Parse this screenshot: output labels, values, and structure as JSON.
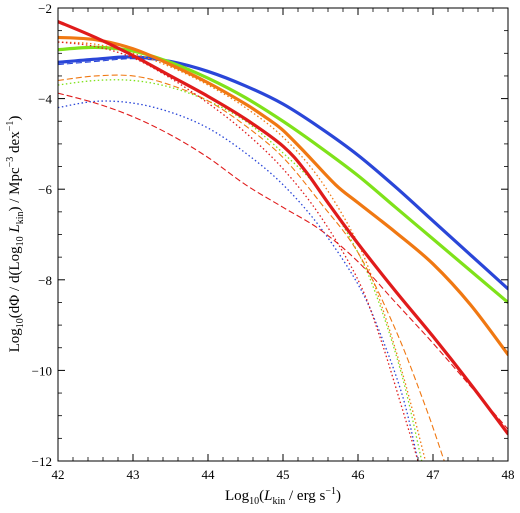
{
  "chart_data": {
    "type": "line",
    "xlabel": "Log10(Lkin / erg s−1)",
    "ylabel": "Log10(dΦ / d(Log10 Lkin) / Mpc−3 dex−1)",
    "xlim": [
      42,
      48
    ],
    "ylim": [
      -12,
      -2
    ],
    "x_ticks": [
      42,
      43,
      44,
      45,
      46,
      47,
      48
    ],
    "y_ticks": [
      -12,
      -10,
      -8,
      -6,
      -4,
      -2
    ],
    "x_ticklabels": [
      "42",
      "43",
      "44",
      "45",
      "46",
      "47",
      "48"
    ],
    "y_ticklabels": [
      "−12",
      "−10",
      "−8",
      "−6",
      "−4",
      "−2"
    ],
    "grid": false,
    "series": [
      {
        "color": "#2a46d8",
        "style": "solid",
        "points": [
          [
            42,
            -3.2
          ],
          [
            42.5,
            -3.13
          ],
          [
            43,
            -3.08
          ],
          [
            43.5,
            -3.18
          ],
          [
            44,
            -3.4
          ],
          [
            44.5,
            -3.72
          ],
          [
            45,
            -4.12
          ],
          [
            45.5,
            -4.65
          ],
          [
            46,
            -5.25
          ],
          [
            46.5,
            -5.95
          ],
          [
            47,
            -6.7
          ],
          [
            47.5,
            -7.45
          ],
          [
            48,
            -8.2
          ]
        ]
      },
      {
        "color": "#2a46d8",
        "style": "dashed",
        "points": [
          [
            42,
            -3.25
          ],
          [
            42.5,
            -3.18
          ],
          [
            43,
            -3.12
          ],
          [
            43.5,
            -3.2
          ],
          [
            44,
            -3.41
          ],
          [
            44.5,
            -3.73
          ],
          [
            45,
            -4.13
          ],
          [
            45.5,
            -4.66
          ],
          [
            46,
            -5.26
          ]
        ]
      },
      {
        "color": "#2a46d8",
        "style": "dotted",
        "points": [
          [
            42,
            -4.2
          ],
          [
            42.5,
            -4.06
          ],
          [
            43,
            -4.1
          ],
          [
            43.5,
            -4.3
          ],
          [
            44,
            -4.65
          ],
          [
            44.5,
            -5.2
          ],
          [
            45,
            -5.9
          ],
          [
            45.5,
            -6.85
          ],
          [
            46,
            -8.1
          ],
          [
            46.3,
            -9.2
          ],
          [
            46.6,
            -10.6
          ],
          [
            46.8,
            -12
          ]
        ]
      },
      {
        "color": "#7fe21a",
        "style": "solid",
        "points": [
          [
            42,
            -2.92
          ],
          [
            42.5,
            -2.87
          ],
          [
            43,
            -2.95
          ],
          [
            43.5,
            -3.2
          ],
          [
            44,
            -3.55
          ],
          [
            44.5,
            -3.98
          ],
          [
            45,
            -4.5
          ],
          [
            45.5,
            -5.08
          ],
          [
            46,
            -5.7
          ],
          [
            46.5,
            -6.4
          ],
          [
            47,
            -7.1
          ],
          [
            47.5,
            -7.8
          ],
          [
            48,
            -8.5
          ]
        ]
      },
      {
        "color": "#7fe21a",
        "style": "dotted",
        "points": [
          [
            42,
            -3.7
          ],
          [
            42.5,
            -3.6
          ],
          [
            43,
            -3.6
          ],
          [
            43.5,
            -3.75
          ],
          [
            44,
            -4.05
          ],
          [
            44.5,
            -4.5
          ],
          [
            45,
            -5.2
          ],
          [
            45.5,
            -6.05
          ],
          [
            46,
            -7.4
          ],
          [
            46.3,
            -8.6
          ],
          [
            46.6,
            -10.2
          ],
          [
            46.85,
            -12
          ]
        ]
      },
      {
        "color": "#f07812",
        "style": "solid",
        "points": [
          [
            42,
            -2.65
          ],
          [
            42.5,
            -2.7
          ],
          [
            43,
            -2.9
          ],
          [
            43.5,
            -3.25
          ],
          [
            44,
            -3.65
          ],
          [
            44.5,
            -4.12
          ],
          [
            44.8,
            -4.45
          ],
          [
            45,
            -4.7
          ],
          [
            45.3,
            -5.2
          ],
          [
            45.7,
            -5.9
          ],
          [
            46,
            -6.3
          ],
          [
            46.5,
            -6.95
          ],
          [
            47,
            -7.65
          ],
          [
            47.5,
            -8.55
          ],
          [
            48,
            -9.65
          ]
        ]
      },
      {
        "color": "#f07812",
        "style": "dashed",
        "points": [
          [
            42,
            -3.6
          ],
          [
            42.5,
            -3.5
          ],
          [
            43,
            -3.5
          ],
          [
            43.5,
            -3.7
          ],
          [
            44,
            -4.05
          ],
          [
            44.5,
            -4.6
          ],
          [
            45,
            -5.3
          ],
          [
            45.5,
            -6.3
          ],
          [
            46,
            -7.4
          ],
          [
            46.5,
            -9.1
          ],
          [
            46.9,
            -10.8
          ],
          [
            47.15,
            -12
          ]
        ]
      },
      {
        "color": "#f07812",
        "style": "dotted",
        "points": [
          [
            42,
            -2.75
          ],
          [
            42.5,
            -2.8
          ],
          [
            43,
            -3.0
          ],
          [
            43.5,
            -3.3
          ],
          [
            44,
            -3.7
          ],
          [
            44.5,
            -4.2
          ],
          [
            45,
            -4.85
          ],
          [
            45.5,
            -5.8
          ],
          [
            46,
            -7.2
          ],
          [
            46.3,
            -8.5
          ],
          [
            46.6,
            -10.1
          ],
          [
            46.9,
            -12
          ]
        ]
      },
      {
        "color": "#e01b1b",
        "style": "solid",
        "points": [
          [
            42,
            -2.3
          ],
          [
            42.5,
            -2.65
          ],
          [
            43,
            -3.05
          ],
          [
            43.5,
            -3.5
          ],
          [
            44,
            -3.95
          ],
          [
            44.5,
            -4.45
          ],
          [
            45,
            -5.05
          ],
          [
            45.3,
            -5.6
          ],
          [
            45.6,
            -6.3
          ],
          [
            46,
            -7.2
          ],
          [
            46.5,
            -8.25
          ],
          [
            47,
            -9.25
          ],
          [
            47.5,
            -10.3
          ],
          [
            48,
            -11.4
          ]
        ]
      },
      {
        "color": "#e01b1b",
        "style": "dashed",
        "points": [
          [
            42,
            -3.88
          ],
          [
            42.5,
            -4.1
          ],
          [
            43,
            -4.4
          ],
          [
            43.5,
            -4.8
          ],
          [
            44,
            -5.3
          ],
          [
            44.5,
            -5.9
          ],
          [
            45,
            -6.4
          ],
          [
            45.5,
            -6.9
          ],
          [
            46,
            -7.6
          ],
          [
            46.5,
            -8.5
          ],
          [
            47,
            -9.4
          ],
          [
            47.5,
            -10.35
          ],
          [
            48,
            -11.3
          ]
        ]
      },
      {
        "color": "#e01b1b",
        "style": "dotted",
        "points": [
          [
            42,
            -2.75
          ],
          [
            42.5,
            -2.85
          ],
          [
            43,
            -3.1
          ],
          [
            43.5,
            -3.55
          ],
          [
            44,
            -4.1
          ],
          [
            44.5,
            -4.75
          ],
          [
            45,
            -5.55
          ],
          [
            45.5,
            -6.6
          ],
          [
            46,
            -8.0
          ],
          [
            46.3,
            -9.3
          ],
          [
            46.6,
            -10.9
          ],
          [
            46.8,
            -12
          ]
        ]
      }
    ]
  }
}
